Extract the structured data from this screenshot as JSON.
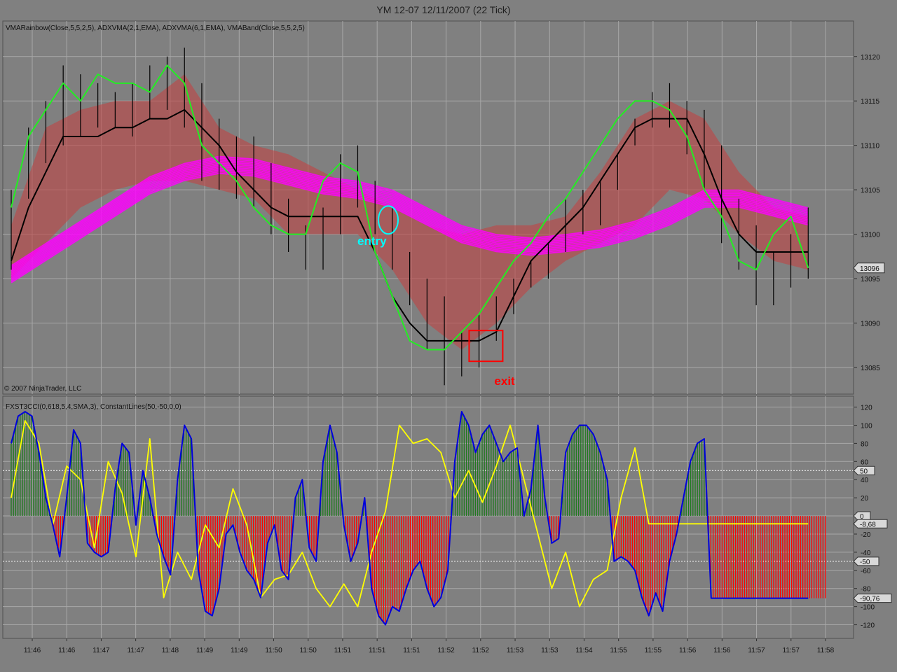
{
  "title": "YM 12-07  12/11/2007  (22 Tick)",
  "copyright": "© 2007 NinjaTrader, LLC",
  "colors": {
    "background": "#808080",
    "grid": "#a8a8a8",
    "adx_fast": "#22ee22",
    "adx_slow": "#000000",
    "rainbow": "#ff00ff",
    "band": "#c04545",
    "cci_line": "#0000dd",
    "cci_signal": "#ffff00",
    "hist_pos": "#1e7a1e",
    "hist_neg": "#ff0000",
    "entry": "#00ffff",
    "exit": "#ff0000"
  },
  "chart_data": [
    {
      "type": "line",
      "panel": "price",
      "indicator_label": "VMARainbow(Close,5,5,2,5), ADXVMA(2,1,EMA), ADXVMA(6,1,EMA), VMABand(Close,5,5,2,5)",
      "ylim": [
        13082,
        13124
      ],
      "yticks": [
        13085,
        13090,
        13095,
        13100,
        13105,
        13110,
        13115,
        13120
      ],
      "last_price_label": "13096",
      "last_price": 13096.2,
      "x_tick_labels": [
        "11:46",
        "11:46",
        "11:47",
        "11:47",
        "11:48",
        "11:49",
        "11:49",
        "11:50",
        "11:50",
        "11:51",
        "11:51",
        "11:51",
        "11:52",
        "11:52",
        "11:53",
        "11:53",
        "11:54",
        "11:55",
        "11:55",
        "11:56",
        "11:56",
        "11:57",
        "11:57",
        "11:58"
      ],
      "x_range": [
        0,
        235
      ],
      "ohlc_bars": {
        "x": [
          0,
          5,
          10,
          15,
          20,
          25,
          30,
          35,
          40,
          45,
          50,
          55,
          60,
          65,
          70,
          75,
          80,
          85,
          90,
          95,
          100,
          105,
          110,
          115,
          120,
          125,
          130,
          135,
          140,
          145,
          150,
          155,
          160,
          165,
          170,
          175,
          180,
          185,
          190,
          195,
          200,
          205,
          210,
          215,
          220,
          225,
          230
        ],
        "high": [
          13105,
          13112,
          13115,
          13119,
          13118,
          13117,
          13116,
          13117,
          13119,
          13120,
          13121,
          13117,
          13113,
          13111,
          13111,
          13108,
          13104,
          13101,
          13103,
          13109,
          13110,
          13106,
          13103,
          13098,
          13095,
          13093,
          13089,
          13091,
          13093,
          13095,
          13097,
          13099,
          13104,
          13105,
          13106,
          13109,
          13113,
          13116,
          13117,
          13115,
          13114,
          13110,
          13104,
          13101,
          13098,
          13100,
          13103
        ],
        "low": [
          13096,
          13104,
          13108,
          13110,
          13111,
          13112,
          13112,
          13111,
          13113,
          13114,
          13112,
          13106,
          13105,
          13104,
          13103,
          13100,
          13098,
          13096,
          13096,
          13100,
          13103,
          13100,
          13096,
          13092,
          13087,
          13083,
          13084,
          13085,
          13088,
          13091,
          13094,
          13095,
          13098,
          13100,
          13101,
          13105,
          13110,
          13112,
          13112,
          13109,
          13105,
          13099,
          13096,
          13092,
          13092,
          13094,
          13095
        ]
      },
      "series": [
        {
          "indicator": "adxvma_fast",
          "role": "fast ADXVMA",
          "x": [
            0,
            5,
            10,
            15,
            20,
            25,
            30,
            35,
            40,
            45,
            50,
            55,
            60,
            65,
            70,
            75,
            80,
            85,
            90,
            95,
            100,
            105,
            110,
            115,
            120,
            125,
            130,
            135,
            140,
            145,
            150,
            155,
            160,
            165,
            170,
            175,
            180,
            185,
            190,
            195,
            200,
            205,
            210,
            215,
            220,
            225,
            230
          ],
          "values": [
            13103,
            13111,
            13114,
            13117,
            13115,
            13118,
            13117,
            13117,
            13116,
            13119,
            13117,
            13110,
            13108,
            13106,
            13103,
            13101,
            13100,
            13100,
            13106,
            13108,
            13107,
            13098,
            13093,
            13088,
            13087,
            13087,
            13089,
            13091,
            13094,
            13097,
            13099,
            13102,
            13104,
            13107,
            13110,
            13113,
            13115,
            13115,
            13114,
            13111,
            13105,
            13102,
            13097,
            13096,
            13100,
            13102,
            13096.2
          ]
        },
        {
          "indicator": "adxvma_slow",
          "role": "slow ADXVMA",
          "x": [
            0,
            5,
            10,
            15,
            20,
            25,
            30,
            35,
            40,
            45,
            50,
            55,
            60,
            65,
            70,
            75,
            80,
            85,
            90,
            95,
            100,
            105,
            110,
            115,
            120,
            125,
            130,
            135,
            140,
            145,
            150,
            155,
            160,
            165,
            170,
            175,
            180,
            185,
            190,
            195,
            200,
            205,
            210,
            215,
            220,
            225,
            230
          ],
          "values": [
            13097,
            13103,
            13107,
            13111,
            13111,
            13111,
            13112,
            13112,
            13113,
            13113,
            13114,
            13112,
            13110,
            13107,
            13105,
            13103,
            13102,
            13102,
            13102,
            13102,
            13102,
            13098,
            13093,
            13090,
            13088,
            13088,
            13088,
            13088,
            13089,
            13093,
            13097,
            13099,
            13101,
            13103,
            13106,
            13109,
            13112,
            13113,
            13113,
            13113,
            13109,
            13104,
            13100,
            13098,
            13098,
            13098,
            13098
          ]
        },
        {
          "indicator": "vma_rainbow",
          "role": "VMA rainbow",
          "x": [
            0,
            10,
            20,
            30,
            40,
            50,
            60,
            70,
            80,
            90,
            100,
            110,
            120,
            130,
            140,
            150,
            160,
            170,
            180,
            190,
            200,
            210,
            220,
            230
          ],
          "values": [
            13095.5,
            13098,
            13100.5,
            13103,
            13105.5,
            13107,
            13107.8,
            13107.5,
            13106.5,
            13105.5,
            13105,
            13104,
            13102,
            13100,
            13099,
            13098.6,
            13099,
            13099.5,
            13100.5,
            13102,
            13104,
            13104,
            13103,
            13102
          ]
        },
        {
          "indicator": "vma_band_upper",
          "role": "VMA band upper",
          "x": [
            0,
            10,
            20,
            30,
            40,
            50,
            60,
            70,
            80,
            90,
            100,
            110,
            120,
            130,
            140,
            150,
            160,
            170,
            180,
            190,
            200,
            210,
            220,
            230
          ],
          "values": [
            13101,
            13112,
            13114,
            13115,
            13115,
            13118,
            13112,
            13110,
            13109,
            13107,
            13105,
            13103,
            13101,
            13100,
            13101,
            13101,
            13102,
            13107,
            13113,
            13115,
            13113,
            13107,
            13103,
            13102
          ]
        },
        {
          "indicator": "vma_band_lower",
          "role": "VMA band lower",
          "x": [
            0,
            10,
            20,
            30,
            40,
            50,
            60,
            70,
            80,
            90,
            100,
            110,
            120,
            130,
            140,
            150,
            160,
            170,
            180,
            190,
            200,
            210,
            220,
            230
          ],
          "values": [
            13095,
            13099,
            13103,
            13105,
            13106,
            13106,
            13105,
            13104,
            13100,
            13100,
            13100,
            13096,
            13090,
            13087,
            13090,
            13094,
            13097,
            13099,
            13101,
            13105,
            13104,
            13100,
            13097,
            13096
          ]
        }
      ],
      "annotations": [
        {
          "text": "entry",
          "x": 108,
          "y": 13100.5,
          "marker": "ellipse"
        },
        {
          "text": "exit",
          "x": 137,
          "y": 13089,
          "marker": "rectangle"
        }
      ]
    },
    {
      "type": "line",
      "panel": "oscillator",
      "indicator_label": "FXST3CCI(0,618,5,4,SMA,3), ConstantLines(50,-50,0,0)",
      "ylim": [
        -135,
        132
      ],
      "yticks": [
        120,
        100,
        80,
        60,
        40,
        20,
        0,
        -20,
        -40,
        -60,
        -80,
        -100,
        -120
      ],
      "constant_lines": [
        50,
        -50,
        0
      ],
      "value_labels": [
        {
          "text": "50",
          "value": 50
        },
        {
          "text": "0",
          "value": 0
        },
        {
          "text": "-8,68",
          "value": -8.68
        },
        {
          "text": "-50",
          "value": -50
        },
        {
          "text": "-90,76",
          "value": -90.76
        }
      ],
      "series": [
        {
          "indicator": "cci",
          "role": "CCI",
          "x": [
            0,
            2,
            4,
            6,
            8,
            10,
            12,
            14,
            16,
            18,
            20,
            22,
            24,
            26,
            28,
            30,
            32,
            34,
            36,
            38,
            40,
            42,
            44,
            46,
            48,
            50,
            52,
            54,
            56,
            58,
            60,
            62,
            64,
            66,
            68,
            70,
            72,
            74,
            76,
            78,
            80,
            82,
            84,
            86,
            88,
            90,
            92,
            94,
            96,
            98,
            100,
            102,
            104,
            106,
            108,
            110,
            112,
            114,
            116,
            118,
            120,
            122,
            124,
            126,
            128,
            130,
            132,
            134,
            136,
            138,
            140,
            142,
            144,
            146,
            148,
            150,
            152,
            154,
            156,
            158,
            160,
            162,
            164,
            166,
            168,
            170,
            172,
            174,
            176,
            178,
            180,
            182,
            184,
            186,
            188,
            190,
            192,
            194,
            196,
            198,
            200,
            202,
            204,
            206,
            208,
            210,
            212,
            214,
            216,
            218,
            220,
            222,
            224,
            226,
            228,
            230
          ],
          "values": [
            80,
            110,
            115,
            110,
            70,
            20,
            -10,
            -45,
            20,
            95,
            80,
            -30,
            -40,
            -45,
            -40,
            30,
            80,
            70,
            -10,
            50,
            20,
            -20,
            -45,
            -65,
            40,
            100,
            85,
            -60,
            -105,
            -110,
            -80,
            -20,
            -10,
            -40,
            -60,
            -70,
            -90,
            -30,
            -10,
            -60,
            -70,
            20,
            40,
            -35,
            -50,
            60,
            100,
            70,
            -10,
            -50,
            -30,
            20,
            -80,
            -110,
            -120,
            -100,
            -105,
            -80,
            -60,
            -50,
            -80,
            -100,
            -90,
            -60,
            60,
            115,
            100,
            70,
            90,
            100,
            80,
            60,
            70,
            75,
            0,
            30,
            100,
            20,
            -30,
            -25,
            70,
            90,
            100,
            100,
            90,
            70,
            40,
            -50,
            -45,
            -50,
            -60,
            -90,
            -110,
            -85,
            -105,
            -50,
            -20,
            20,
            60,
            80,
            85,
            -90.76,
            -90.76,
            -90.76,
            -90.76,
            -90.76,
            -90.76,
            -90.76,
            -90.76,
            -90.76,
            -90.76,
            -90.76,
            -90.76,
            -90.76,
            -90.76,
            -90.76
          ]
        },
        {
          "indicator": "cci_signal",
          "role": "CCI signal",
          "x": [
            0,
            4,
            8,
            12,
            16,
            20,
            24,
            28,
            32,
            36,
            40,
            44,
            48,
            52,
            56,
            60,
            64,
            68,
            72,
            76,
            80,
            84,
            88,
            92,
            96,
            100,
            104,
            108,
            112,
            116,
            120,
            124,
            128,
            132,
            136,
            140,
            144,
            148,
            152,
            156,
            160,
            164,
            168,
            172,
            176,
            180,
            184,
            188,
            192,
            196,
            200,
            204,
            208,
            212,
            216,
            220,
            224,
            228,
            230
          ],
          "values": [
            20,
            105,
            80,
            -10,
            55,
            40,
            -35,
            60,
            25,
            -45,
            85,
            -90,
            -40,
            -70,
            -10,
            -35,
            30,
            -10,
            -90,
            -70,
            -65,
            -40,
            -80,
            -100,
            -75,
            -100,
            -40,
            5,
            100,
            80,
            85,
            70,
            20,
            50,
            15,
            55,
            100,
            40,
            -20,
            -80,
            -40,
            -100,
            -70,
            -60,
            20,
            75,
            -8.68,
            -8.68,
            -8.68,
            -8.68,
            -8.68,
            -8.68,
            -8.68,
            -8.68,
            -8.68,
            -8.68,
            -8.68,
            -8.68,
            -8.68
          ]
        }
      ]
    }
  ]
}
